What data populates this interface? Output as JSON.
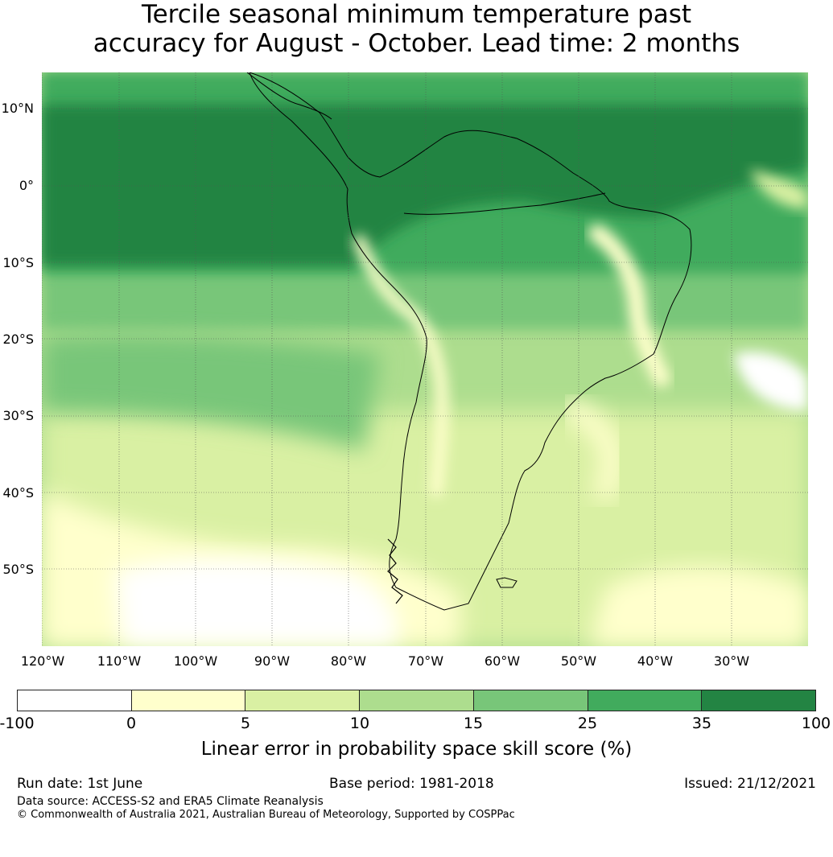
{
  "title": {
    "line1": "Tercile seasonal minimum temperature past",
    "line2": "accuracy for August - October. Lead time: 2 months"
  },
  "map": {
    "lat_labels": [
      "10°N",
      "0°",
      "10°S",
      "20°S",
      "30°S",
      "40°S",
      "50°S"
    ],
    "lon_labels": [
      "120°W",
      "110°W",
      "100°W",
      "90°W",
      "80°W",
      "70°W",
      "60°W",
      "50°W",
      "40°W",
      "30°W"
    ],
    "region": "South America"
  },
  "colorbar": {
    "ticks": [
      "-100",
      "0",
      "5",
      "10",
      "15",
      "25",
      "35",
      "100"
    ],
    "colors": [
      "#ffffff",
      "#ffffcc",
      "#d9f0a3",
      "#addd8e",
      "#78c679",
      "#41ab5d",
      "#238443"
    ],
    "label": "Linear error in probability space skill score (%)"
  },
  "footer": {
    "run_date": "Run date: 1st June",
    "base_period": "Base period: 1981-2018",
    "issued": "Issued: 21/12/2021",
    "data_source": "Data source: ACCESS-S2 and ERA5 Climate Reanalysis",
    "copyright": "© Commonwealth of Australia 2021, Australian Bureau of Meteorology, Supported by COSPPac"
  }
}
